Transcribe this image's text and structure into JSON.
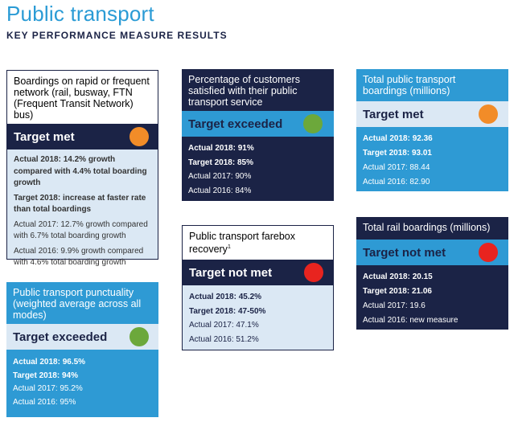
{
  "page": {
    "title": "Public transport",
    "subtitle": "KEY PERFORMANCE MEASURE RESULTS"
  },
  "cards": [
    {
      "heading": "Boardings on rapid or frequent network (rail, busway, FTN (Frequent Transit Network) bus)",
      "status": "Target met",
      "indicator": "orange",
      "lines": [
        "Actual 2018: 14.2% growth compared with 4.4% total boarding growth",
        "Target 2018: increase at faster rate than total boardings",
        "Actual 2017: 12.7% growth compared with 6.7% total boarding growth",
        "Actual 2016: 9.9% growth compared with 4.6% total boarding growth"
      ]
    },
    {
      "heading": "Public transport punctuality (weighted average across all modes)",
      "status": "Target exceeded",
      "indicator": "green",
      "lines": [
        "Actual 2018: 96.5%",
        "Target 2018: 94%",
        "Actual 2017: 95.2%",
        "Actual 2016: 95%"
      ]
    },
    {
      "heading": "Percentage of customers satisfied with their public transport service",
      "status": "Target exceeded",
      "indicator": "green",
      "lines": [
        "Actual 2018: 91%",
        "Target 2018: 85%",
        "Actual 2017: 90%",
        "Actual 2016: 84%"
      ]
    },
    {
      "heading": "Public transport farebox recovery",
      "heading_sup": "1",
      "status": "Target not met",
      "indicator": "red",
      "lines": [
        "Actual 2018: 45.2%",
        "Target 2018: 47-50%",
        "Actual 2017: 47.1%",
        "Actual 2016: 51.2%"
      ]
    },
    {
      "heading": "Total public transport boardings (millions)",
      "status": "Target met",
      "indicator": "orange",
      "lines": [
        "Actual 2018: 92.36",
        "Target 2018: 93.01",
        "Actual 2017: 88.44",
        "Actual 2016: 82.90"
      ]
    },
    {
      "heading": "Total rail boardings (millions)",
      "status": "Target not met",
      "indicator": "red",
      "lines": [
        "Actual 2018: 20.15",
        "Target 2018: 21.06",
        "Actual 2017: 19.6",
        "Actual 2016: new measure"
      ]
    }
  ],
  "colors": {
    "navy": "#1b2346",
    "light_blue": "#2e9ad4",
    "pale_blue": "#dbe8f4",
    "title_blue": "#2a9bd5",
    "indicator_orange": "#f28c28",
    "indicator_green": "#6ca83b",
    "indicator_red": "#e8241f"
  }
}
